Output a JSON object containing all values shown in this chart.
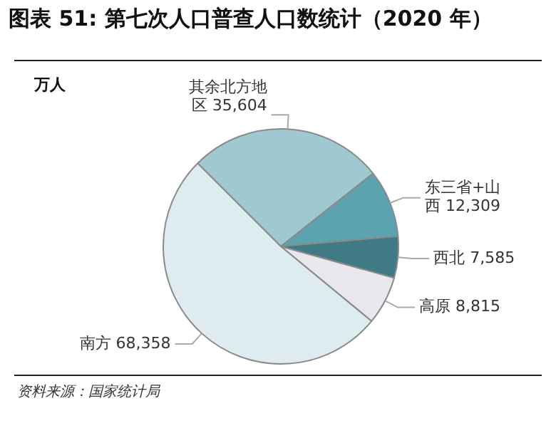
{
  "chart_data": {
    "type": "pie",
    "title": "图表 51: 第七次人口普查人口数统计（2020 年）",
    "subtitle": "万人",
    "categories": [
      "其余北方地区",
      "东三省+山西",
      "西北",
      "高原",
      "南方"
    ],
    "values": [
      35604,
      12309,
      7585,
      8815,
      68358
    ],
    "value_labels": [
      "35,604",
      "12,309",
      "7,585",
      "8,815",
      "68,358"
    ],
    "colors": [
      "#9fc8d0",
      "#5ba3ae",
      "#3f7a85",
      "#e8e8ec",
      "#deebef"
    ],
    "legend": false,
    "annotations": [
      "资料来源：国家统计局"
    ]
  }
}
